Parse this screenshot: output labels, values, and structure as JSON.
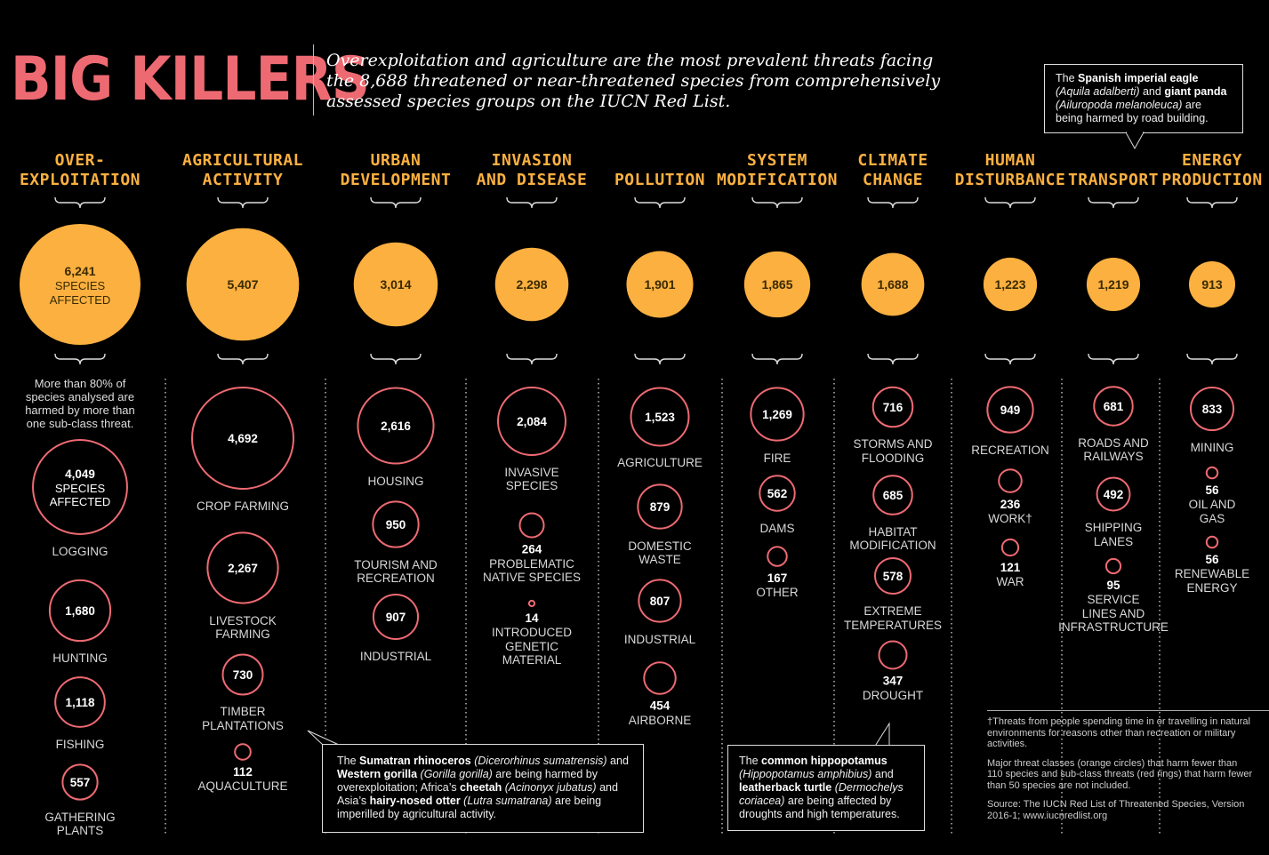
{
  "header": {
    "title": "BIG KILLERS",
    "subtitle": "Overexploitation and agriculture are the most prevalent threats facing the 8,688 threatened or near-threatened species from comprehensively assessed species groups on the IUCN Red List."
  },
  "colors": {
    "title": "#ee6a72",
    "category_title": "#fbb040",
    "disc": "#fbb040",
    "ring": "#ee6a72",
    "background": "#000000"
  },
  "chart_data": {
    "type": "bubble",
    "title": "BIG KILLERS",
    "unit": "species affected",
    "categories": [
      {
        "name": "OVER-\nEXPLOITATION",
        "value": 6241,
        "value_label": "6,241",
        "value_sub": "SPECIES\nAFFECTED",
        "subthreats": [
          {
            "name": "LOGGING",
            "value": 4049,
            "value_label": "4,049",
            "value_sub": "SPECIES\nAFFECTED"
          },
          {
            "name": "HUNTING",
            "value": 1680,
            "value_label": "1,680"
          },
          {
            "name": "FISHING",
            "value": 1118,
            "value_label": "1,118"
          },
          {
            "name": "GATHERING\nPLANTS",
            "value": 557,
            "value_label": "557"
          }
        ]
      },
      {
        "name": "AGRICULTURAL\nACTIVITY",
        "value": 5407,
        "value_label": "5,407",
        "subthreats": [
          {
            "name": "CROP FARMING",
            "value": 4692,
            "value_label": "4,692"
          },
          {
            "name": "LIVESTOCK\nFARMING",
            "value": 2267,
            "value_label": "2,267"
          },
          {
            "name": "TIMBER\nPLANTATIONS",
            "value": 730,
            "value_label": "730"
          },
          {
            "name": "AQUACULTURE",
            "value": 112,
            "value_label": "112"
          }
        ]
      },
      {
        "name": "URBAN\nDEVELOPMENT",
        "value": 3014,
        "value_label": "3,014",
        "subthreats": [
          {
            "name": "HOUSING",
            "value": 2616,
            "value_label": "2,616"
          },
          {
            "name": "TOURISM AND\nRECREATION",
            "value": 950,
            "value_label": "950"
          },
          {
            "name": "INDUSTRIAL",
            "value": 907,
            "value_label": "907"
          }
        ]
      },
      {
        "name": "INVASION\nAND DISEASE",
        "value": 2298,
        "value_label": "2,298",
        "subthreats": [
          {
            "name": "INVASIVE\nSPECIES",
            "value": 2084,
            "value_label": "2,084"
          },
          {
            "name": "PROBLEMATIC\nNATIVE SPECIES",
            "value": 264,
            "value_label": "264"
          },
          {
            "name": "INTRODUCED\nGENETIC\nMATERIAL",
            "value": 14,
            "value_label": "14"
          }
        ]
      },
      {
        "name": "POLLUTION",
        "value": 1901,
        "value_label": "1,901",
        "subthreats": [
          {
            "name": "AGRICULTURE",
            "value": 1523,
            "value_label": "1,523"
          },
          {
            "name": "DOMESTIC\nWASTE",
            "value": 879,
            "value_label": "879"
          },
          {
            "name": "INDUSTRIAL",
            "value": 807,
            "value_label": "807"
          },
          {
            "name": "AIRBORNE",
            "value": 454,
            "value_label": "454"
          }
        ]
      },
      {
        "name": "SYSTEM\nMODIFICATION",
        "value": 1865,
        "value_label": "1,865",
        "subthreats": [
          {
            "name": "FIRE",
            "value": 1269,
            "value_label": "1,269"
          },
          {
            "name": "DAMS",
            "value": 562,
            "value_label": "562"
          },
          {
            "name": "OTHER",
            "value": 167,
            "value_label": "167"
          }
        ]
      },
      {
        "name": "CLIMATE\nCHANGE",
        "value": 1688,
        "value_label": "1,688",
        "subthreats": [
          {
            "name": "STORMS AND\nFLOODING",
            "value": 716,
            "value_label": "716"
          },
          {
            "name": "HABITAT\nMODIFICATION",
            "value": 685,
            "value_label": "685"
          },
          {
            "name": "EXTREME\nTEMPERATURES",
            "value": 578,
            "value_label": "578"
          },
          {
            "name": "DROUGHT",
            "value": 347,
            "value_label": "347"
          }
        ]
      },
      {
        "name": "HUMAN\nDISTURBANCE",
        "value": 1223,
        "value_label": "1,223",
        "subthreats": [
          {
            "name": "RECREATION",
            "value": 949,
            "value_label": "949"
          },
          {
            "name": "WORK†",
            "value": 236,
            "value_label": "236"
          },
          {
            "name": "WAR",
            "value": 121,
            "value_label": "121"
          }
        ]
      },
      {
        "name": "TRANSPORT",
        "value": 1219,
        "value_label": "1,219",
        "subthreats": [
          {
            "name": "ROADS AND\nRAILWAYS",
            "value": 681,
            "value_label": "681"
          },
          {
            "name": "SHIPPING\nLANES",
            "value": 492,
            "value_label": "492"
          },
          {
            "name": "SERVICE\nLINES AND\nINFRASTRUCTURE",
            "value": 95,
            "value_label": "95"
          }
        ]
      },
      {
        "name": "ENERGY\nPRODUCTION",
        "value": 913,
        "value_label": "913",
        "subthreats": [
          {
            "name": "MINING",
            "value": 833,
            "value_label": "833"
          },
          {
            "name": "OIL AND\nGAS",
            "value": 56,
            "value_label": "56"
          },
          {
            "name": "RENEWABLE\nENERGY",
            "value": 56,
            "value_label": "56"
          }
        ]
      }
    ]
  },
  "annotations": {
    "over80": "More than 80% of species analysed are harmed by more than one sub-class threat.",
    "eagle_panda": {
      "p1": "The ",
      "b1": "Spanish imperial eagle",
      "i1": "(Aquila adalberti)",
      "p2": " and ",
      "b2": "giant panda",
      "i2": "(Ailuropoda melanoleuca)",
      "p3": " are being harmed by road building."
    },
    "rhino": {
      "p1": "The ",
      "b1": "Sumatran rhinoceros",
      "i1": " (Dicerorhinus sumatrensis)",
      "p2": " and ",
      "b2": "Western gorilla",
      "i2": " (Gorilla gorilla)",
      "p3": " are being harmed by overexploitation; Africa’s ",
      "b3": "cheetah",
      "i3": " (Acinonyx jubatus)",
      "p4": " and Asia’s ",
      "b4": "hairy-nosed otter",
      "i4": " (Lutra sumatrana)",
      "p5": " are being imperilled by agricultural activity."
    },
    "hippo": {
      "p1": "The ",
      "b1": "common hippopotamus",
      "i1": "(Hippopotamus amphibius)",
      "p2": " and ",
      "b2": "leatherback turtle",
      "i2": " (Dermochelys coriacea)",
      "p3": " are being affected by droughts and high temperatures."
    }
  },
  "footnotes": {
    "dagger": "†Threats from people spending time in or travelling in natural environments for reasons other than recreation or military activities.",
    "method": "Major threat classes (orange circles) that harm fewer than 110 species and sub-class threats (red rings) that harm fewer than 50 species are not included.",
    "source": "Source: The IUCN Red List of Threatened Species, Version 2016-1; www.iucnredlist.org"
  }
}
